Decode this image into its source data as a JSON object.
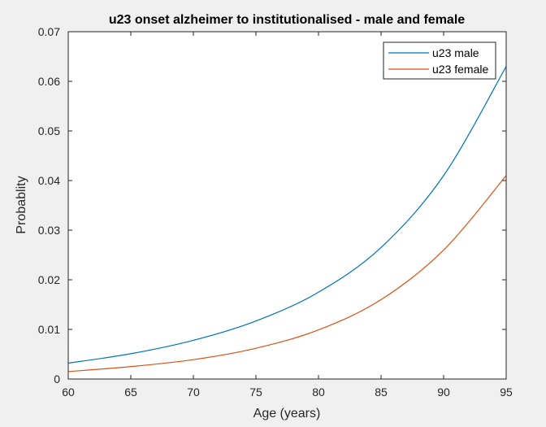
{
  "chart_data": {
    "type": "line",
    "title": "u23 onset alzheimer to institutionalised - male and female",
    "xlabel": "Age (years)",
    "ylabel": "Probablity",
    "xlim": [
      60,
      95
    ],
    "ylim": [
      0,
      0.07
    ],
    "xticks": [
      "60",
      "65",
      "70",
      "75",
      "80",
      "85",
      "90",
      "95"
    ],
    "yticks": [
      "0",
      "0.01",
      "0.02",
      "0.03",
      "0.04",
      "0.05",
      "0.06",
      "0.07"
    ],
    "grid": false,
    "legend_position": "top-right",
    "x": [
      60,
      65,
      70,
      75,
      80,
      85,
      90,
      95
    ],
    "series": [
      {
        "name": "u23 male",
        "color": "#0072BD",
        "values": [
          0.0032,
          0.0051,
          0.0078,
          0.0117,
          0.0175,
          0.0265,
          0.041,
          0.063
        ]
      },
      {
        "name": "u23 female",
        "color": "#D95319",
        "values": [
          0.0015,
          0.0025,
          0.0039,
          0.0062,
          0.0099,
          0.016,
          0.026,
          0.041
        ]
      }
    ]
  }
}
